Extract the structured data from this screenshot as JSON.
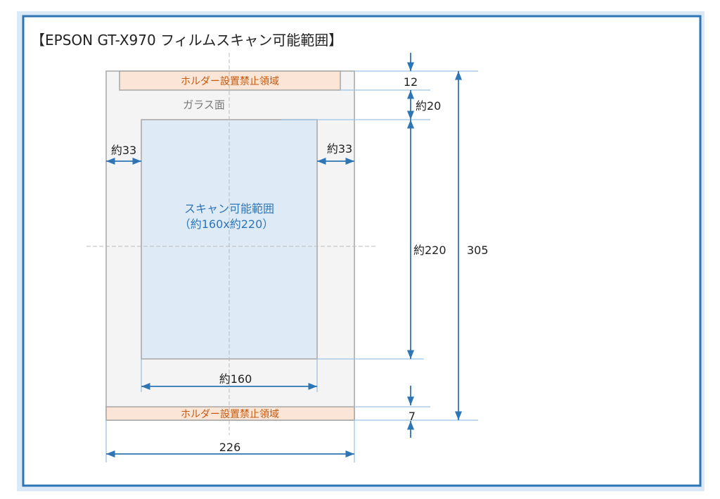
{
  "title": "【EPSON GT-X970  フィルムスキャン可能範囲】",
  "labels": {
    "holder_top": "ホルダー設置禁止領域",
    "holder_bottom": "ホルダー設置禁止領域",
    "glass": "ガラス面",
    "scan_area_line1": "スキャン可能範囲",
    "scan_area_line2": "（約160x約220）"
  },
  "dimensions": {
    "top_holder": "12",
    "top_gap": "約20",
    "scan_height": "約220",
    "total_height": "305",
    "bottom_holder": "7",
    "left_margin": "約33",
    "right_margin": "約33",
    "scan_width": "約160",
    "total_width": "226"
  },
  "colors": {
    "frame": "#2e75b6",
    "frame_band": "#dbe8f6",
    "dimension": "#2e75b6",
    "extension": "#9dc3e6",
    "glass": "#f4f4f4",
    "holder": "#fbe5d6",
    "holder_text": "#c55a11",
    "scan_area": "#deebf7",
    "scan_text": "#2e75b6"
  }
}
